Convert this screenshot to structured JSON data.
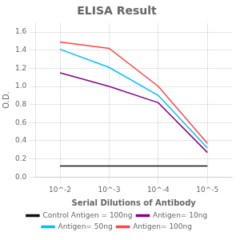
{
  "chart_data": {
    "type": "line",
    "title": "ELISA Result",
    "xlabel": "Serial Dilutions of Antibody",
    "ylabel": "O.D.",
    "categories": [
      "10^-2",
      "10^-3",
      "10^-4",
      "10^-5"
    ],
    "series": [
      {
        "name": "Control Antigen = 100ng",
        "color": "#111111",
        "values": [
          0.12,
          0.12,
          0.12,
          0.12
        ]
      },
      {
        "name": "Antigen= 10ng",
        "color": "#8B008B",
        "values": [
          1.15,
          1.0,
          0.82,
          0.27
        ]
      },
      {
        "name": "Antigen= 50ng",
        "color": "#00BFFF",
        "values": [
          1.41,
          1.21,
          0.9,
          0.32
        ]
      },
      {
        "name": "Antigen= 100ng",
        "color": "#FF4444",
        "values": [
          1.49,
          1.42,
          1.0,
          0.37
        ]
      }
    ],
    "ylim": [
      0,
      1.7
    ],
    "yticks": [
      {
        "value": 0,
        "label": "0.0"
      },
      0.2,
      0.4,
      0.6,
      0.8,
      {
        "value": 1.0,
        "label": "1.0"
      },
      1.2,
      1.4,
      1.6
    ],
    "grid": true,
    "legend": "bottom"
  }
}
